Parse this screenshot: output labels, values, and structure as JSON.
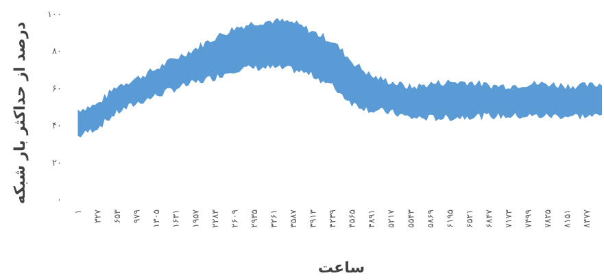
{
  "chart_data": {
    "type": "area",
    "title": "",
    "xlabel": "ساعت",
    "ylabel": "درصد از حداکثر بار شبکه",
    "ylim": [
      0,
      100
    ],
    "y_ticks": [
      0,
      20,
      40,
      60,
      80,
      100
    ],
    "y_tick_labels": [
      "۰",
      "۲۰",
      "۴۰",
      "۶۰",
      "۸۰",
      "۱۰۰"
    ],
    "xlim": [
      1,
      8760
    ],
    "x_ticks": [
      1,
      327,
      653,
      979,
      1305,
      1631,
      1957,
      2283,
      2609,
      2935,
      3261,
      3587,
      3913,
      4239,
      4565,
      4891,
      5217,
      5543,
      5869,
      6195,
      6521,
      6847,
      7173,
      7499,
      7825,
      8151,
      8477
    ],
    "x_tick_labels": [
      "۱",
      "۳۲۷",
      "۶۵۳",
      "۹۷۹",
      "۱۳۰۵",
      "۱۶۳۱",
      "۱۹۵۷",
      "۲۲۸۳",
      "۲۶۰۹",
      "۲۹۳۵",
      "۳۲۶۱",
      "۳۵۸۷",
      "۳۹۱۳",
      "۴۲۳۹",
      "۴۵۶۵",
      "۴۸۹۱",
      "۵۲۱۷",
      "۵۵۴۳",
      "۵۸۶۹",
      "۶۱۹۵",
      "۶۵۲۱",
      "۶۸۴۷",
      "۷۱۷۳",
      "۷۴۹۹",
      "۷۸۲۵",
      "۸۱۵۱",
      "۸۴۷۷"
    ],
    "grid": false,
    "legend": "none",
    "color": "#5B9BD5",
    "series": [
      {
        "x": [
          1,
          327,
          653,
          979,
          1305,
          1631,
          1957,
          2283,
          2609,
          2935,
          3261,
          3587,
          3913,
          4239,
          4565,
          4891,
          5217,
          5543,
          5869,
          6195,
          6521,
          6847,
          7173,
          7499,
          7825,
          8151,
          8477,
          8760
        ],
        "upper": [
          48,
          51,
          61,
          65,
          70,
          76,
          81,
          87,
          92,
          95,
          96,
          95,
          90,
          85,
          74,
          66,
          63,
          60,
          62,
          63,
          63,
          61,
          61,
          62,
          62,
          61,
          61,
          62
        ],
        "lower": [
          34,
          39,
          47,
          52,
          56,
          60,
          63,
          66,
          70,
          71,
          71,
          70,
          67,
          61,
          52,
          48,
          47,
          44,
          44,
          44,
          45,
          45,
          45,
          45,
          45,
          45,
          45,
          45
        ]
      }
    ]
  }
}
